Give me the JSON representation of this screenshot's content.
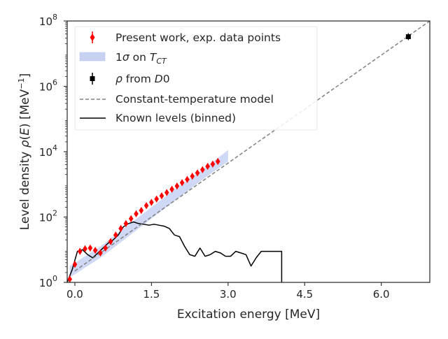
{
  "chart_data": {
    "type": "scatter",
    "xlabel": "Excitation energy [MeV]",
    "ylabel_parts": {
      "pre": "Level density ",
      "rho": "ρ",
      "arg_open": "(",
      "arg": "E",
      "arg_close": ")",
      "unit_open": " [MeV",
      "unit_exp": "−1",
      "unit_close": "]"
    },
    "xlim": [
      -0.15,
      6.95
    ],
    "ylim_log10": [
      0,
      8
    ],
    "log_y": true,
    "x_ticks": [
      "0.0",
      "1.5",
      "3.0",
      "4.5",
      "6.0"
    ],
    "x_tick_values": [
      0,
      1.5,
      3,
      4.5,
      6
    ],
    "y_ticks": [
      {
        "base": "10",
        "exp": "0",
        "value": 0
      },
      {
        "base": "10",
        "exp": "2",
        "value": 2
      },
      {
        "base": "10",
        "exp": "4",
        "value": 4
      },
      {
        "base": "10",
        "exp": "6",
        "value": 6
      },
      {
        "base": "10",
        "exp": "8",
        "value": 8
      }
    ],
    "grid": false,
    "legend_position": "top-left",
    "legend": {
      "exp_points": "Present work, exp. data points",
      "band_pre": "1",
      "band_sigma": "σ",
      "band_mid": " on ",
      "band_T": "T",
      "band_sub": "CT",
      "d0_rho": "ρ",
      "d0_mid": " from ",
      "d0_D": "D",
      "d0_zero": "0",
      "ct_model": "Constant-temperature model",
      "known_levels": "Known levels (binned)"
    },
    "colors": {
      "exp_points": "#ff0000",
      "band": "#c7d1f2",
      "d0": "#000000",
      "ct_model": "#808080",
      "known_levels": "#000000",
      "text": "#262626"
    },
    "series": [
      {
        "kind": "exp_points",
        "marker": "diamond",
        "x": [
          -0.08,
          -0.01,
          0.06,
          0.13,
          0.21,
          0.28,
          0.35,
          0.43,
          0.5,
          0.57,
          0.64,
          0.71,
          0.79,
          0.86,
          0.93,
          1.01,
          1.08,
          1.15,
          1.22,
          1.3,
          1.37,
          1.44,
          1.51,
          1.58,
          1.66,
          1.73,
          1.8,
          1.87,
          1.94,
          2.02,
          2.09,
          2.16,
          2.23,
          2.31,
          2.38,
          2.45,
          2.52,
          2.6,
          2.67,
          2.74,
          2.81
        ],
        "log10_y": [
          0.05,
          0.55,
          0.95,
          0.85,
          1.05,
          1.0,
          1.0,
          0.95,
          0.9,
          0.85,
          0.9,
          1.05,
          1.15,
          1.25,
          1.45,
          1.65,
          1.8,
          1.95,
          2.05,
          2.15,
          2.25,
          2.35,
          2.45,
          2.55,
          2.65,
          2.75,
          2.85,
          2.95,
          3.05,
          3.15,
          3.25,
          3.35,
          3.45,
          3.55,
          3.62,
          3.68,
          3.7,
          3.72,
          3.72,
          3.72,
          3.7
        ]
      }
    ],
    "exp_points": {
      "x": [
        -0.1,
        0.0,
        0.1,
        0.2,
        0.3,
        0.4,
        0.5,
        0.6,
        0.7,
        0.8,
        0.9,
        1.0,
        1.1,
        1.2,
        1.3,
        1.4,
        1.5,
        1.6,
        1.7,
        1.8,
        1.9,
        2.0,
        2.1,
        2.2,
        2.3,
        2.4,
        2.5,
        2.6,
        2.7,
        2.8
      ],
      "log10_y": [
        0.1,
        0.55,
        0.95,
        1.03,
        1.05,
        0.98,
        0.9,
        1.05,
        1.25,
        1.45,
        1.65,
        1.8,
        1.95,
        2.1,
        2.2,
        2.35,
        2.45,
        2.55,
        2.65,
        2.75,
        2.85,
        2.95,
        3.05,
        3.15,
        3.25,
        3.35,
        3.45,
        3.55,
        3.62,
        3.7
      ]
    },
    "d0_point": {
      "x": 6.53,
      "log10_y": 7.52
    },
    "ct_model_line": {
      "x": [
        0.0,
        6.95
      ],
      "log10_y": [
        0.35,
        8.0
      ]
    },
    "band": {
      "x": [
        -0.1,
        0.5,
        1.0,
        1.5,
        2.0,
        2.5,
        3.0
      ],
      "log10_y_low": [
        0.15,
        0.75,
        1.35,
        1.95,
        2.55,
        3.15,
        3.7
      ],
      "log10_y_high": [
        0.5,
        1.1,
        1.7,
        2.3,
        2.9,
        3.45,
        4.05
      ]
    },
    "known_levels": {
      "x": [
        -0.15,
        -0.05,
        0.05,
        0.15,
        0.25,
        0.35,
        0.45,
        0.55,
        0.65,
        0.75,
        0.85,
        0.95,
        1.05,
        1.15,
        1.25,
        1.35,
        1.45,
        1.55,
        1.65,
        1.75,
        1.85,
        1.95,
        2.05,
        2.15,
        2.25,
        2.35,
        2.45,
        2.55,
        2.65,
        2.75,
        2.85,
        2.95,
        3.05,
        3.15,
        3.25,
        3.35,
        3.45,
        3.55,
        3.65,
        3.75,
        3.85,
        3.95,
        4.05,
        4.05
      ],
      "log10_y": [
        0.0,
        0.4,
        0.95,
        1.0,
        0.85,
        0.75,
        0.9,
        1.05,
        1.2,
        1.3,
        1.45,
        1.7,
        1.8,
        1.85,
        1.8,
        1.78,
        1.75,
        1.78,
        1.75,
        1.72,
        1.65,
        1.45,
        1.4,
        1.1,
        0.85,
        0.8,
        1.05,
        0.8,
        0.85,
        0.95,
        0.9,
        0.8,
        0.8,
        0.95,
        0.9,
        0.85,
        0.5,
        0.75,
        0.95,
        0.95,
        0.95,
        0.95,
        0.95,
        0.0
      ]
    }
  }
}
